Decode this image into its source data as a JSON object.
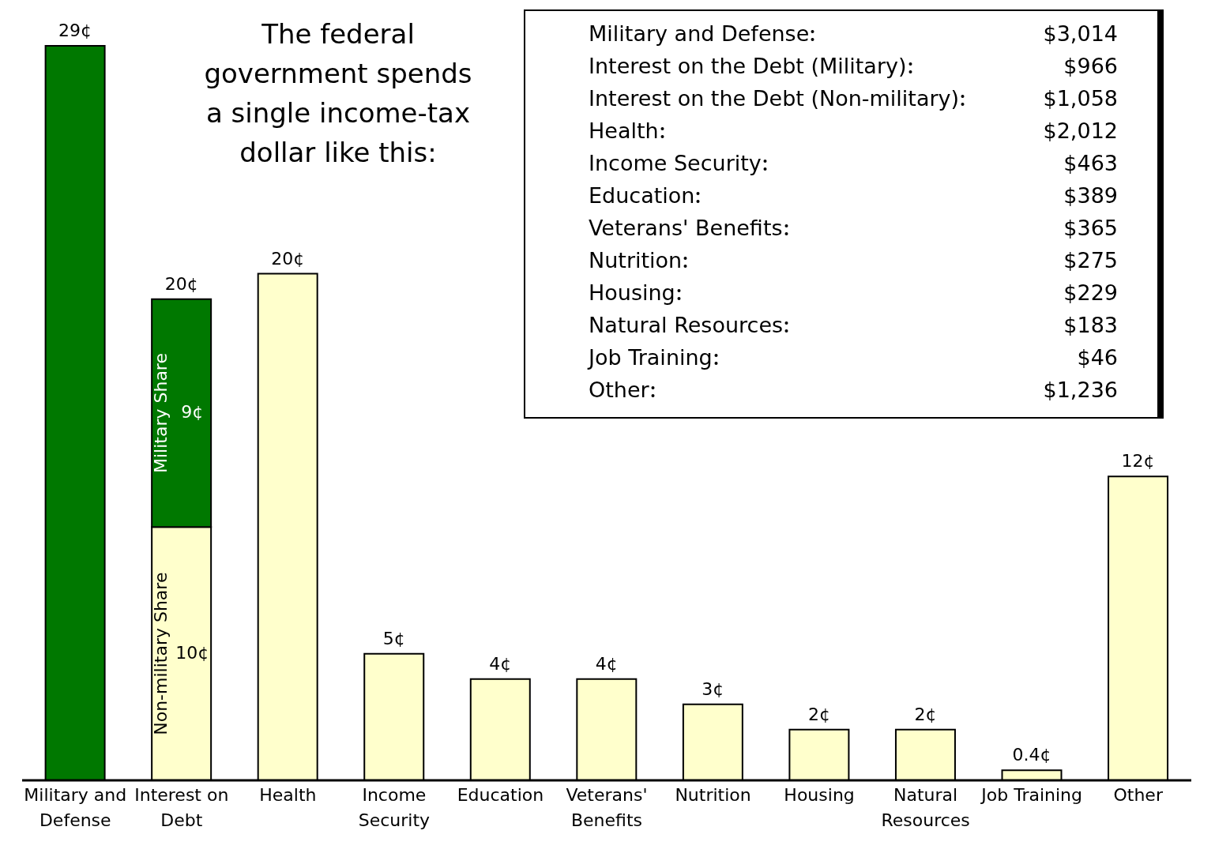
{
  "chart_data": [
    {
      "type": "bar",
      "title": "The federal government spends a single income-tax dollar like this:",
      "stacked": true,
      "categories": [
        "Military and Defense",
        "Interest on Debt",
        "Health",
        "Income Security",
        "Education",
        "Veterans' Benefits",
        "Nutrition",
        "Housing",
        "Natural Resources",
        "Job Training",
        "Other"
      ],
      "series": [
        {
          "name": "Non-military Share",
          "color": "#ffffcc",
          "values": [
            null,
            10,
            null,
            null,
            null,
            null,
            null,
            null,
            null,
            null,
            null
          ],
          "value_labels": [
            null,
            "10¢",
            null,
            null,
            null,
            null,
            null,
            null,
            null,
            null,
            null
          ]
        },
        {
          "color": "#ffffcc",
          "values": [
            null,
            null,
            20,
            5,
            4,
            4,
            3,
            2,
            2,
            0.4,
            12
          ],
          "value_labels": [
            null,
            null,
            "20¢",
            "5¢",
            "4¢",
            "4¢",
            "3¢",
            "2¢",
            "2¢",
            "0.4¢",
            "12¢"
          ]
        },
        {
          "name": "Military Share",
          "color": "#007800",
          "values": [
            29,
            9,
            null,
            null,
            null,
            null,
            null,
            null,
            null,
            null,
            null
          ],
          "value_labels": [
            "29¢",
            "9¢",
            null,
            null,
            null,
            null,
            null,
            null,
            null,
            null,
            null
          ]
        }
      ],
      "totals": [
        null,
        "20¢",
        null,
        null,
        null,
        null,
        null,
        null,
        null,
        null,
        null
      ],
      "tick_labels": "x"
    },
    {
      "type": "other",
      "categories": [
        "Military and Defense",
        "Interest on the Debt (Military)",
        "Interest on the Debt (Non-military)",
        "Health",
        "Income Security",
        "Education",
        "Veterans' Benefits",
        "Nutrition",
        "Housing",
        "Natural Resources",
        "Job Training",
        "Other"
      ],
      "value_labels": [
        "$3,014",
        "$966",
        "$1,058",
        "$2,012",
        "$463",
        "$389",
        "$365",
        "$275",
        "$229",
        "$183",
        "$46",
        "$1,236"
      ]
    }
  ]
}
